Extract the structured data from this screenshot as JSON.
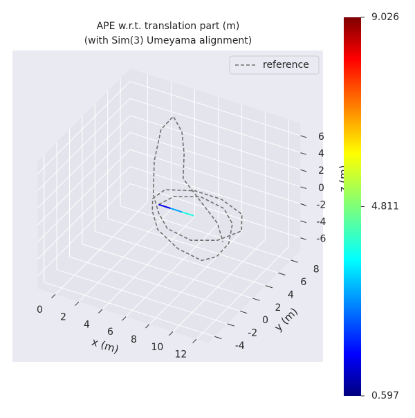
{
  "chart_data": {
    "type": "line3d",
    "title": "APE w.r.t. translation part (m)",
    "subtitle": "(with Sim(3) Umeyama alignment)",
    "xlabel": "x (m)",
    "ylabel": "y (m)",
    "zlabel": "z (m)",
    "xlim": [
      -1.5,
      13
    ],
    "ylim": [
      -5,
      9.5
    ],
    "zlim": [
      -7.5,
      7.5
    ],
    "xticks": [
      0,
      2,
      4,
      6,
      8,
      10,
      12
    ],
    "yticks": [
      -4,
      -2,
      0,
      2,
      4,
      6,
      8
    ],
    "zticks": [
      -6,
      -4,
      -2,
      0,
      2,
      4,
      6
    ],
    "legend": "upper right",
    "series": [
      {
        "name": "reference",
        "color": "#707070",
        "x": [
          5,
          6,
          8,
          10,
          11,
          11.5,
          11,
          10,
          8,
          6,
          5,
          4.5,
          5,
          7,
          9,
          11,
          11.5,
          10,
          8,
          6,
          5,
          4,
          3,
          2.5,
          3,
          4,
          5,
          6,
          8,
          10,
          11
        ],
        "y": [
          2,
          2.5,
          3,
          3,
          2.5,
          1,
          0,
          -0.5,
          -0.5,
          0,
          1,
          2,
          3,
          4,
          4.5,
          4,
          3,
          2,
          1.5,
          1.5,
          2,
          3,
          5,
          7,
          8,
          7.5,
          6,
          4,
          3,
          2,
          1
        ],
        "z": [
          0,
          1,
          1.5,
          1,
          0,
          -1,
          -2,
          -2.5,
          -2,
          -1,
          0,
          0.5,
          1,
          1,
          0.5,
          0,
          -1,
          -2,
          -2.5,
          -2,
          -1,
          0,
          2,
          4,
          5,
          4,
          3,
          2,
          1,
          0,
          -1
        ]
      }
    ],
    "estimate": {
      "x": [
        5,
        6,
        7,
        8
      ],
      "y": [
        2,
        2,
        2,
        2
      ],
      "z": [
        0,
        0,
        0,
        0
      ],
      "error": [
        0.6,
        1.5,
        3,
        4
      ]
    },
    "colorbar": {
      "ticks": [
        {
          "value": 0.597,
          "label": "0.597"
        },
        {
          "value": 4.811,
          "label": "4.811"
        },
        {
          "value": 9.026,
          "label": "9.026"
        }
      ],
      "lim": [
        0.597,
        9.026
      ]
    }
  }
}
